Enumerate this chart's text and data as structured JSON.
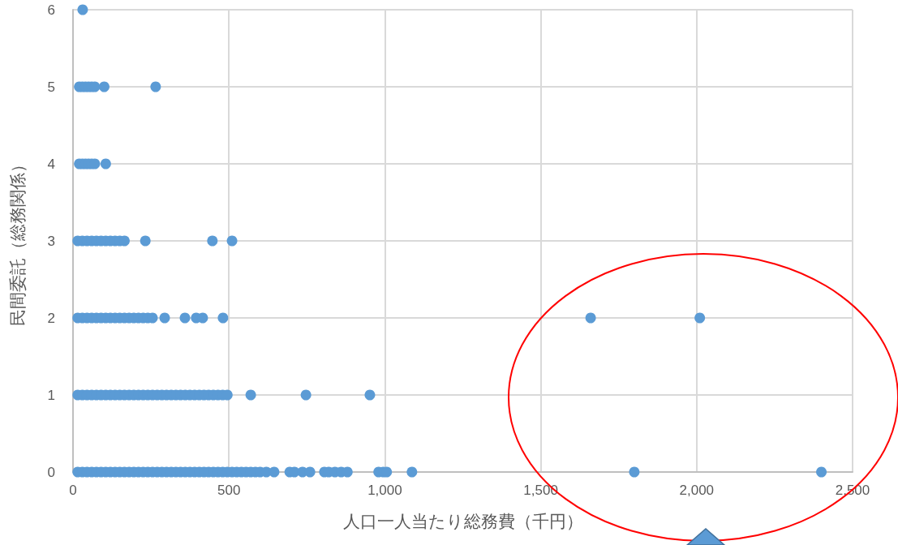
{
  "chart_data": {
    "type": "scatter",
    "xlabel": "人口一人当たり総務費（千円）",
    "ylabel": "民間委託（総務関係）",
    "x": [
      15,
      30,
      45,
      60,
      75,
      90,
      105,
      120,
      135,
      150,
      165,
      180,
      195,
      210,
      225,
      240,
      255,
      270,
      285,
      300,
      315,
      330,
      345,
      360,
      375,
      390,
      405,
      420,
      435,
      450,
      465,
      480,
      495,
      510,
      525,
      540,
      555,
      570,
      585,
      600,
      620,
      645,
      695,
      710,
      736,
      760,
      806,
      820,
      840,
      860,
      880,
      980,
      995,
      1006,
      1087,
      1800,
      2400,
      15,
      30,
      45,
      60,
      75,
      90,
      105,
      120,
      135,
      150,
      165,
      180,
      195,
      210,
      225,
      240,
      255,
      270,
      285,
      300,
      315,
      330,
      345,
      360,
      375,
      390,
      405,
      420,
      435,
      450,
      465,
      480,
      495,
      570,
      747,
      952,
      15,
      30,
      45,
      60,
      75,
      90,
      105,
      120,
      135,
      150,
      165,
      180,
      195,
      210,
      225,
      240,
      255,
      294,
      359,
      395,
      416,
      481,
      1660,
      2010,
      15,
      30,
      45,
      60,
      75,
      90,
      105,
      120,
      135,
      150,
      165,
      232,
      447,
      510,
      20,
      30,
      40,
      50,
      60,
      70,
      105,
      20,
      30,
      40,
      50,
      60,
      70,
      100,
      265,
      31
    ],
    "values": [
      0,
      0,
      0,
      0,
      0,
      0,
      0,
      0,
      0,
      0,
      0,
      0,
      0,
      0,
      0,
      0,
      0,
      0,
      0,
      0,
      0,
      0,
      0,
      0,
      0,
      0,
      0,
      0,
      0,
      0,
      0,
      0,
      0,
      0,
      0,
      0,
      0,
      0,
      0,
      0,
      0,
      0,
      0,
      0,
      0,
      0,
      0,
      0,
      0,
      0,
      0,
      0,
      0,
      0,
      0,
      0,
      0,
      1,
      1,
      1,
      1,
      1,
      1,
      1,
      1,
      1,
      1,
      1,
      1,
      1,
      1,
      1,
      1,
      1,
      1,
      1,
      1,
      1,
      1,
      1,
      1,
      1,
      1,
      1,
      1,
      1,
      1,
      1,
      1,
      1,
      1,
      1,
      1,
      2,
      2,
      2,
      2,
      2,
      2,
      2,
      2,
      2,
      2,
      2,
      2,
      2,
      2,
      2,
      2,
      2,
      2,
      2,
      2,
      2,
      2,
      2,
      2,
      3,
      3,
      3,
      3,
      3,
      3,
      3,
      3,
      3,
      3,
      3,
      3,
      3,
      3,
      4,
      4,
      4,
      4,
      4,
      4,
      4,
      5,
      5,
      5,
      5,
      5,
      5,
      5,
      5,
      6
    ],
    "color": "#5b9bd5",
    "marker": "circle",
    "xlim": [
      0,
      2500
    ],
    "xticks": [
      0,
      500,
      {
        "value": 1000,
        "label": "1,000"
      },
      {
        "value": 1500,
        "label": "1,500"
      },
      {
        "value": 2000,
        "label": "2,000"
      },
      {
        "value": 2500,
        "label": "2,500"
      }
    ],
    "ylim": [
      0,
      6
    ],
    "yticks": [
      0,
      1,
      2,
      3,
      4,
      5,
      6
    ],
    "grid": true
  }
}
